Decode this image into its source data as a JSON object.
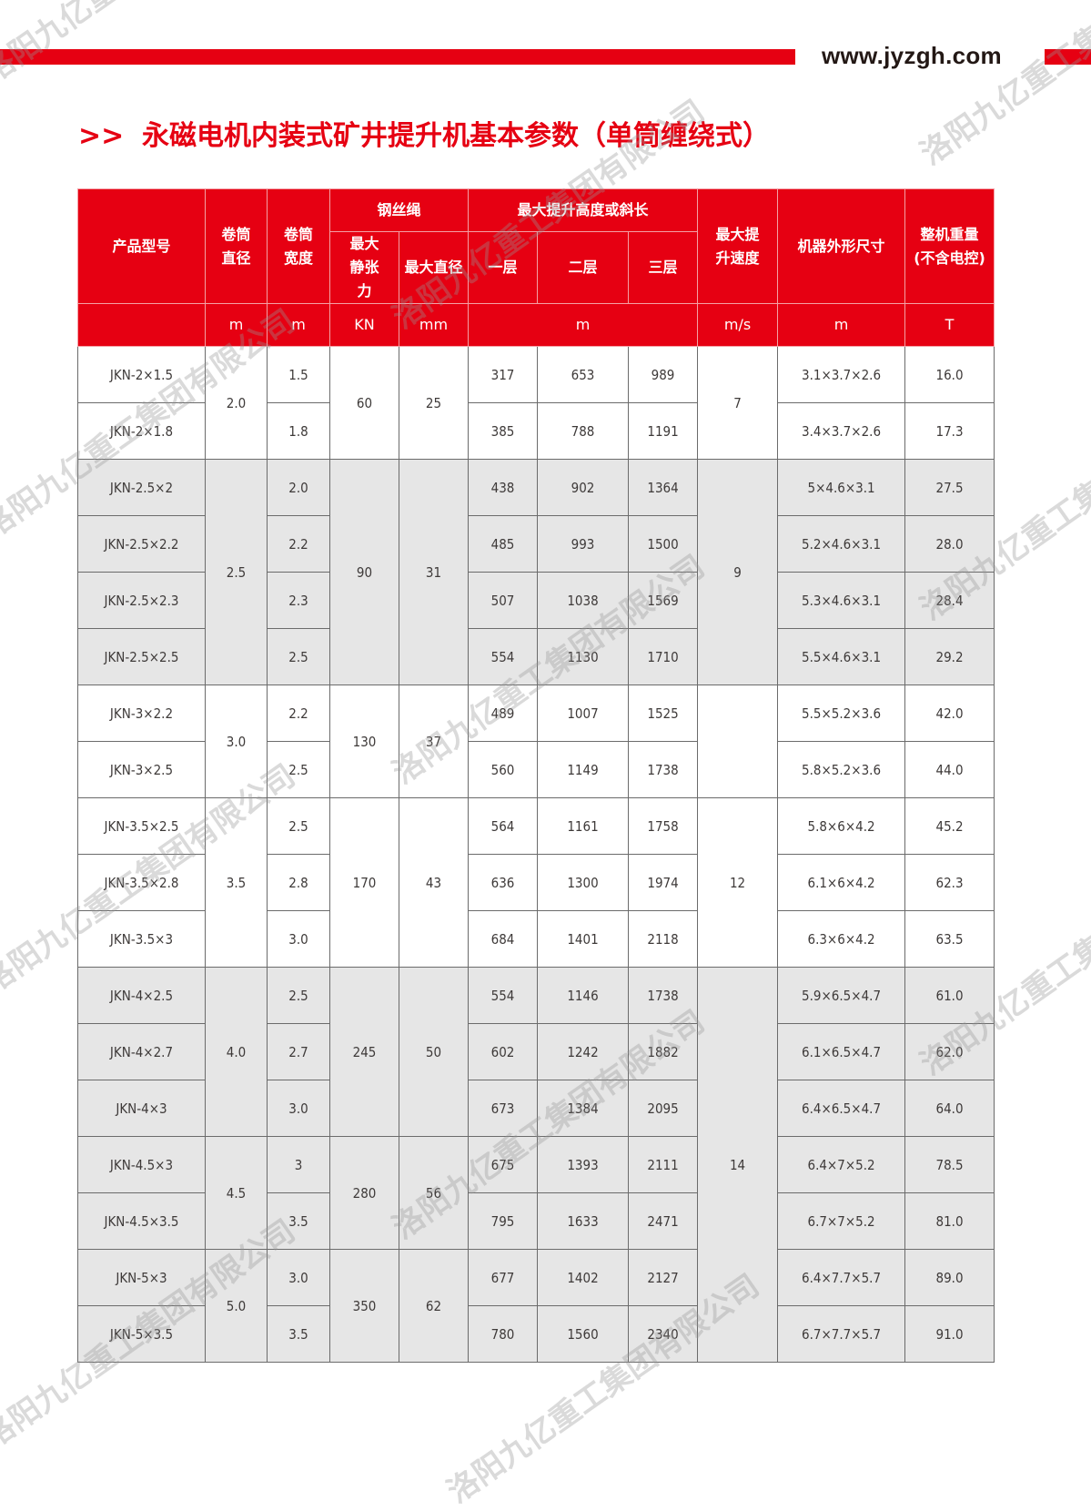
{
  "header": {
    "url": "www.jyzgh.com",
    "title_marker": ">>",
    "title": "永磁电机内装式矿井提升机基本参数（单筒缠绕式）",
    "accent_color": "#e60012"
  },
  "watermark": "洛阳九亿重工集团有限公司",
  "table": {
    "headers": {
      "model": "产品型号",
      "drum_diameter": "卷筒直径",
      "drum_width": "卷筒宽度",
      "rope": "钢丝绳",
      "rope_tension": "最大静张力",
      "rope_diameter": "最大直径",
      "height": "最大提升高度或斜长",
      "layer1": "一层",
      "layer2": "二层",
      "layer3": "三层",
      "speed": "最大提升速度",
      "dims": "机器外形尺寸",
      "weight": "整机重量(不含电控)"
    },
    "units": {
      "drum_diameter": "m",
      "drum_width": "m",
      "rope_tension": "KN",
      "rope_diameter": "mm",
      "height": "m",
      "speed": "m/s",
      "dims": "m",
      "weight": "T"
    },
    "groups": [
      {
        "drum_diameter": "2.0",
        "rope_tension": "60",
        "rope_diameter": "25",
        "shade": "white",
        "rows": [
          {
            "model": "JKN-2×1.5",
            "width": "1.5",
            "h1": "317",
            "h2": "653",
            "h3": "989",
            "dims": "3.1×3.7×2.6",
            "weight": "16.0"
          },
          {
            "model": "JKN-2×1.8",
            "width": "1.8",
            "h1": "385",
            "h2": "788",
            "h3": "1191",
            "dims": "3.4×3.7×2.6",
            "weight": "17.3"
          }
        ]
      },
      {
        "drum_diameter": "2.5",
        "rope_tension": "90",
        "rope_diameter": "31",
        "shade": "gray",
        "rows": [
          {
            "model": "JKN-2.5×2",
            "width": "2.0",
            "h1": "438",
            "h2": "902",
            "h3": "1364",
            "dims": "5×4.6×3.1",
            "weight": "27.5"
          },
          {
            "model": "JKN-2.5×2.2",
            "width": "2.2",
            "h1": "485",
            "h2": "993",
            "h3": "1500",
            "dims": "5.2×4.6×3.1",
            "weight": "28.0"
          },
          {
            "model": "JKN-2.5×2.3",
            "width": "2.3",
            "h1": "507",
            "h2": "1038",
            "h3": "1569",
            "dims": "5.3×4.6×3.1",
            "weight": "28.4"
          },
          {
            "model": "JKN-2.5×2.5",
            "width": "2.5",
            "h1": "554",
            "h2": "1130",
            "h3": "1710",
            "dims": "5.5×4.6×3.1",
            "weight": "29.2"
          }
        ]
      },
      {
        "drum_diameter": "3.0",
        "rope_tension": "130",
        "rope_diameter": "37",
        "shade": "white",
        "rows": [
          {
            "model": "JKN-3×2.2",
            "width": "2.2",
            "h1": "489",
            "h2": "1007",
            "h3": "1525",
            "dims": "5.5×5.2×3.6",
            "weight": "42.0"
          },
          {
            "model": "JKN-3×2.5",
            "width": "2.5",
            "h1": "560",
            "h2": "1149",
            "h3": "1738",
            "dims": "5.8×5.2×3.6",
            "weight": "44.0"
          }
        ]
      },
      {
        "drum_diameter": "3.5",
        "rope_tension": "170",
        "rope_diameter": "43",
        "shade": "white",
        "rows": [
          {
            "model": "JKN-3.5×2.5",
            "width": "2.5",
            "h1": "564",
            "h2": "1161",
            "h3": "1758",
            "dims": "5.8×6×4.2",
            "weight": "45.2"
          },
          {
            "model": "JKN-3.5×2.8",
            "width": "2.8",
            "h1": "636",
            "h2": "1300",
            "h3": "1974",
            "dims": "6.1×6×4.2",
            "weight": "62.3"
          },
          {
            "model": "JKN-3.5×3",
            "width": "3.0",
            "h1": "684",
            "h2": "1401",
            "h3": "2118",
            "dims": "6.3×6×4.2",
            "weight": "63.5"
          }
        ]
      },
      {
        "drum_diameter": "4.0",
        "rope_tension": "245",
        "rope_diameter": "50",
        "shade": "gray",
        "rows": [
          {
            "model": "JKN-4×2.5",
            "width": "2.5",
            "h1": "554",
            "h2": "1146",
            "h3": "1738",
            "dims": "5.9×6.5×4.7",
            "weight": "61.0"
          },
          {
            "model": "JKN-4×2.7",
            "width": "2.7",
            "h1": "602",
            "h2": "1242",
            "h3": "1882",
            "dims": "6.1×6.5×4.7",
            "weight": "62.0"
          },
          {
            "model": "JKN-4×3",
            "width": "3.0",
            "h1": "673",
            "h2": "1384",
            "h3": "2095",
            "dims": "6.4×6.5×4.7",
            "weight": "64.0"
          }
        ]
      },
      {
        "drum_diameter": "4.5",
        "rope_tension": "280",
        "rope_diameter": "56",
        "shade": "gray",
        "rows": [
          {
            "model": "JKN-4.5×3",
            "width": "3",
            "h1": "675",
            "h2": "1393",
            "h3": "2111",
            "dims": "6.4×7×5.2",
            "weight": "78.5"
          },
          {
            "model": "JKN-4.5×3.5",
            "width": "3.5",
            "h1": "795",
            "h2": "1633",
            "h3": "2471",
            "dims": "6.7×7×5.2",
            "weight": "81.0"
          }
        ]
      },
      {
        "drum_diameter": "5.0",
        "rope_tension": "350",
        "rope_diameter": "62",
        "shade": "gray",
        "rows": [
          {
            "model": "JKN-5×3",
            "width": "3.0",
            "h1": "677",
            "h2": "1402",
            "h3": "2127",
            "dims": "6.4×7.7×5.7",
            "weight": "89.0"
          },
          {
            "model": "JKN-5×3.5",
            "width": "3.5",
            "h1": "780",
            "h2": "1560",
            "h3": "2340",
            "dims": "6.7×7.7×5.7",
            "weight": "91.0"
          }
        ]
      }
    ],
    "speed_cells": [
      {
        "value": "7",
        "rowspan": 2,
        "shade": "white"
      },
      {
        "value": "9",
        "rowspan": 4,
        "shade": "gray"
      },
      {
        "value": "",
        "rowspan": 2,
        "shade": "white"
      },
      {
        "value": "12",
        "rowspan": 3,
        "shade": "white"
      },
      {
        "value": "14",
        "rowspan": 7,
        "shade": "gray"
      }
    ]
  }
}
